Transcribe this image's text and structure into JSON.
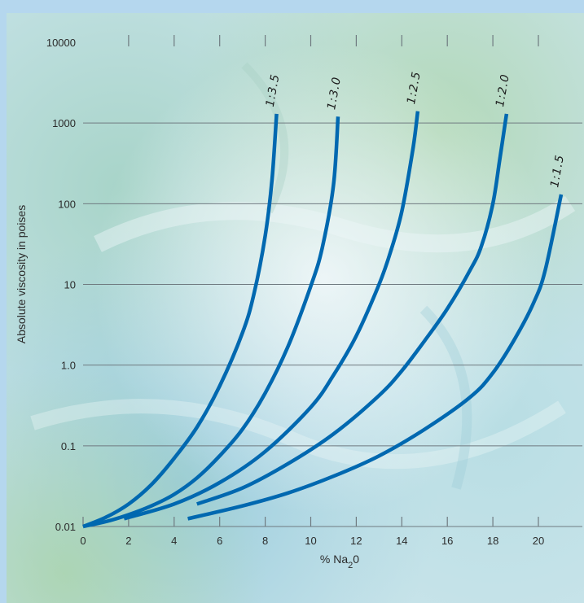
{
  "chart_data": {
    "type": "line",
    "title": "",
    "xlabel": "% Na2O",
    "xlabel_main": "% Na",
    "xlabel_sub": "2",
    "xlabel_tail": "0",
    "ylabel": "Absolute viscosity in poises",
    "xlim": [
      0,
      21
    ],
    "ylim": [
      0.01,
      10000
    ],
    "y_scale": "log",
    "grid": true,
    "x_ticks": [
      "0",
      "2",
      "4",
      "6",
      "8",
      "10",
      "12",
      "14",
      "16",
      "18",
      "20"
    ],
    "y_ticks": [
      "0.01",
      "0.1",
      "1.0",
      "10",
      "100",
      "1000",
      "10000"
    ],
    "y_tick_values": [
      0.01,
      0.1,
      1,
      10,
      100,
      1000,
      10000
    ],
    "series": [
      {
        "name": "1:3.5",
        "x": [
          0,
          1,
          2,
          3,
          4,
          5,
          6,
          7,
          7.5,
          8,
          8.3,
          8.5
        ],
        "y": [
          0.01,
          0.013,
          0.019,
          0.033,
          0.07,
          0.17,
          0.55,
          2.5,
          7.5,
          40,
          200,
          1300
        ]
      },
      {
        "name": "1:3.0",
        "x": [
          0,
          1,
          2,
          3,
          4,
          5,
          6,
          7,
          8,
          9,
          10,
          10.5,
          11,
          11.2
        ],
        "y": [
          0.01,
          0.0115,
          0.014,
          0.018,
          0.025,
          0.04,
          0.075,
          0.16,
          0.45,
          1.7,
          9.5,
          28,
          170,
          1200
        ]
      },
      {
        "name": "1:2.5",
        "x": [
          1.8,
          4,
          6,
          8,
          10,
          11,
          12,
          13,
          13.5,
          14,
          14.5,
          14.7
        ],
        "y": [
          0.0125,
          0.019,
          0.035,
          0.085,
          0.3,
          0.75,
          2.3,
          10,
          25,
          80,
          500,
          1400
        ]
      },
      {
        "name": "1:2.0",
        "x": [
          5,
          7,
          9,
          11,
          13,
          14,
          15,
          16,
          17,
          17.5,
          18,
          18.3,
          18.6
        ],
        "y": [
          0.019,
          0.03,
          0.06,
          0.14,
          0.42,
          0.85,
          2,
          5,
          15,
          30,
          100,
          350,
          1300
        ]
      },
      {
        "name": "1:1.5",
        "x": [
          4.6,
          7,
          9,
          11,
          13,
          15,
          17,
          18,
          19,
          19.8,
          20.3,
          21
        ],
        "y": [
          0.0125,
          0.018,
          0.026,
          0.042,
          0.075,
          0.16,
          0.4,
          0.8,
          2.2,
          6,
          15,
          130
        ]
      }
    ],
    "colors": {
      "curve": "#0068b0",
      "grid": "#6f7a80",
      "page_frame": "#b5d7ee",
      "axis_text": "#2b2b2b"
    }
  }
}
